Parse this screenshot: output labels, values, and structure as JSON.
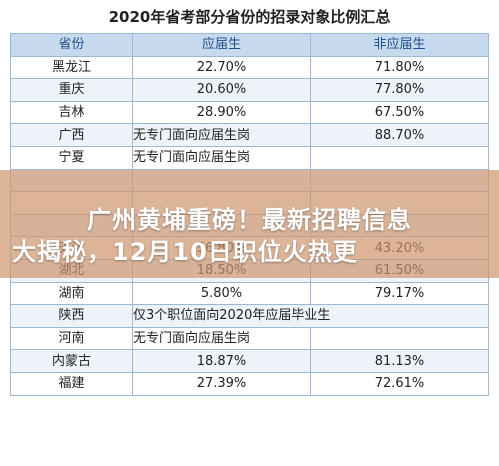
{
  "title": "2020年省考部分省份的招录对象比例汇总",
  "headers": [
    "省份",
    "应届生",
    "非应届生"
  ],
  "rows": [
    {
      "province": "黑龙江",
      "fresh": "22.70%",
      "nonfresh": "71.80%"
    },
    {
      "province": "重庆",
      "fresh": "20.60%",
      "nonfresh": "77.80%"
    },
    {
      "province": "吉林",
      "fresh": "28.90%",
      "nonfresh": "67.50%"
    },
    {
      "province": "广西",
      "note": "无专门面向应届生岗",
      "nonfresh": "88.70%"
    },
    {
      "province": "宁夏",
      "note": "无专门面向应届生岗",
      "nonfresh": ""
    },
    {
      "province": "",
      "fresh": "",
      "nonfresh": ""
    },
    {
      "province": "",
      "fresh": "",
      "nonfresh": ""
    },
    {
      "province": "",
      "fresh": "",
      "nonfresh": ""
    },
    {
      "province": "天津",
      "fresh": "56.80%",
      "nonfresh": "43.20%"
    },
    {
      "province": "湖北",
      "fresh": "18.50%",
      "nonfresh": "61.50%"
    },
    {
      "province": "湖南",
      "fresh": "5.80%",
      "nonfresh": "79.17%"
    },
    {
      "province": "陕西",
      "note": "仅3个职位面向2020年应届毕业生"
    },
    {
      "province": "河南",
      "note": "无专门面向应届生岗",
      "nonfresh": ""
    },
    {
      "province": "内蒙古",
      "fresh": "18.87%",
      "nonfresh": "81.13%"
    },
    {
      "province": "福建",
      "fresh": "27.39%",
      "nonfresh": "72.61%"
    }
  ],
  "banner": {
    "line1": "广州黄埔重磅！最新招聘信息",
    "line2": "大揭秘，12月10日职位火热更"
  }
}
